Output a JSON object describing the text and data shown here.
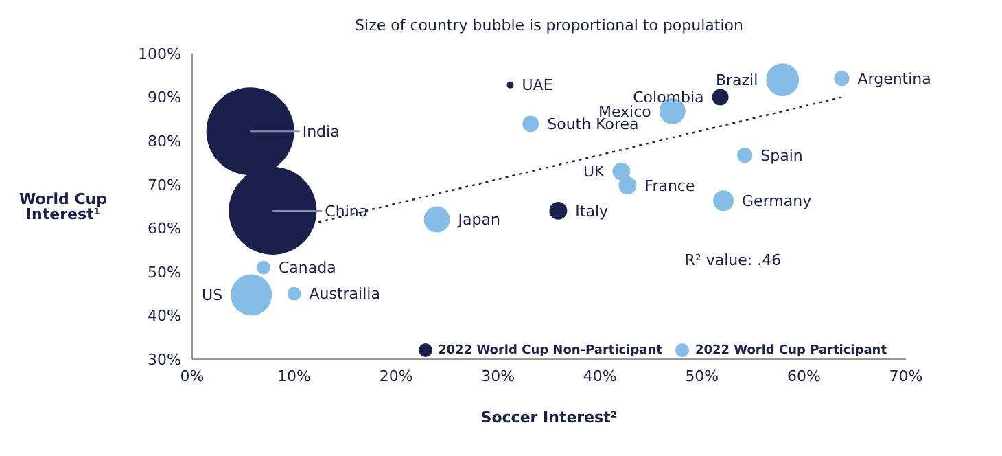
{
  "chart_data": {
    "type": "bubble",
    "title": "Size of country bubble is proportional to population",
    "xlabel": "Soccer Interest²",
    "ylabel": "World Cup Interest¹",
    "xlim": [
      0,
      70
    ],
    "xticks": [
      {
        "value": 0,
        "label": "0%"
      },
      {
        "value": 10,
        "label": "10%"
      },
      {
        "value": 20,
        "label": "20%"
      },
      {
        "value": 30,
        "label": "30%"
      },
      {
        "value": 40,
        "label": "40%"
      },
      {
        "value": 50,
        "label": "50%"
      },
      {
        "value": 60,
        "label": "60%"
      },
      {
        "value": 70,
        "label": "70%"
      }
    ],
    "ylim": [
      30,
      100
    ],
    "yticks": [
      {
        "value": 30,
        "label": "30%"
      },
      {
        "value": 40,
        "label": "40%"
      },
      {
        "value": 50,
        "label": "50%"
      },
      {
        "value": 60,
        "label": "60%"
      },
      {
        "value": 70,
        "label": "70%"
      },
      {
        "value": 80,
        "label": "80%"
      },
      {
        "value": 90,
        "label": "90%"
      },
      {
        "value": 100,
        "label": "100%"
      }
    ],
    "grid": false,
    "legend": "bottom right",
    "series": [
      {
        "name": "2022 World Cup Non-Participant",
        "type": "bubble",
        "color": "#1b1f4b",
        "x": [
          5.7,
          7.9,
          31.2,
          35.9,
          51.8
        ],
        "values": [
          82.2,
          64.0,
          92.8,
          64.0,
          90.0
        ],
        "sizes": [
          1,
          1,
          0.006,
          0.041,
          0.035
        ]
      },
      {
        "name": "2022 World Cup Participant",
        "type": "bubble",
        "color": "#86bde6",
        "x": [
          33.2,
          24.0,
          7.0,
          5.8,
          10.0,
          57.9,
          63.7,
          47.1,
          54.2,
          42.1,
          42.7,
          52.1
        ],
        "values": [
          83.9,
          62.0,
          51.0,
          44.7,
          45.0,
          94.0,
          94.3,
          86.8,
          76.7,
          73.0,
          69.8,
          66.3
        ],
        "sizes": [
          0.035,
          0.088,
          0.024,
          0.22,
          0.024,
          0.14,
          0.03,
          0.088,
          0.03,
          0.041,
          0.041,
          0.055
        ]
      },
      {
        "type": "line",
        "color": "#1b1f4b",
        "line_style": "dotted",
        "x": [
          12.4,
          63.7
        ],
        "values": [
          61.4,
          90.0
        ]
      }
    ],
    "annotations": [
      {
        "text": "India",
        "x": 5.7,
        "y": 82.2
      },
      {
        "text": "China",
        "x": 7.9,
        "y": 64.0
      },
      {
        "text": "UAE",
        "x": 31.2,
        "y": 92.8
      },
      {
        "text": "Italy",
        "x": 35.9,
        "y": 64.0
      },
      {
        "text": "Colombia",
        "x": 51.8,
        "y": 90.0
      },
      {
        "text": "South Korea",
        "x": 33.2,
        "y": 83.9
      },
      {
        "text": "Japan",
        "x": 24.0,
        "y": 62.0
      },
      {
        "text": "Canada",
        "x": 7.0,
        "y": 51.0
      },
      {
        "text": "US",
        "x": 5.8,
        "y": 44.7
      },
      {
        "text": "Austrailia",
        "x": 10.0,
        "y": 45.0
      },
      {
        "text": "Brazil",
        "x": 57.9,
        "y": 94.0
      },
      {
        "text": "Argentina",
        "x": 63.7,
        "y": 94.3
      },
      {
        "text": "Mexico",
        "x": 47.1,
        "y": 86.8
      },
      {
        "text": "Spain",
        "x": 54.2,
        "y": 76.7
      },
      {
        "text": "UK",
        "x": 42.1,
        "y": 73.0
      },
      {
        "text": "France",
        "x": 42.7,
        "y": 69.8
      },
      {
        "text": "Germany",
        "x": 52.1,
        "y": 66.3
      },
      "R² value: .46"
    ]
  }
}
